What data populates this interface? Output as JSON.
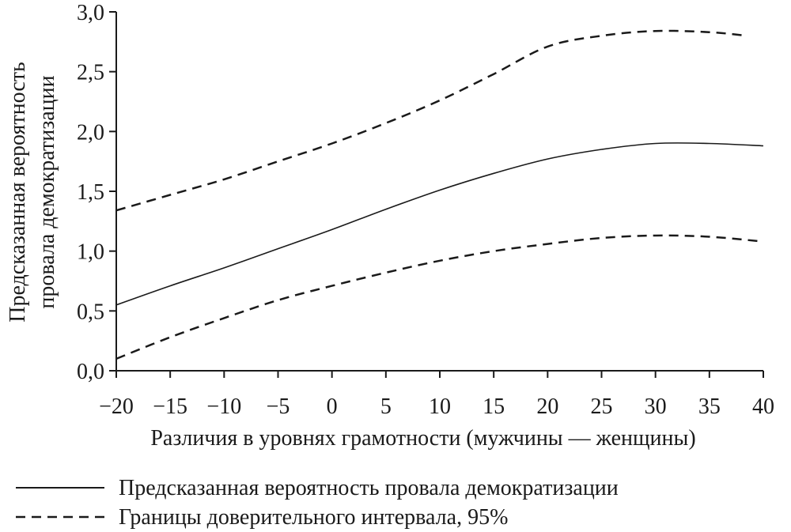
{
  "chart_data": {
    "type": "line",
    "xlabel": "Различия в уровнях грамотности (мужчины — женщины)",
    "ylabel_lines": [
      "Предсказанная вероятность",
      "провала демократизации"
    ],
    "xlim": [
      -20,
      40
    ],
    "ylim": [
      0,
      3
    ],
    "x_ticks": [
      -20,
      -15,
      -10,
      -5,
      0,
      5,
      10,
      15,
      20,
      25,
      30,
      35,
      40
    ],
    "x_tick_labels": [
      "−20",
      "−15",
      "−10",
      "−5",
      "0",
      "5",
      "10",
      "15",
      "20",
      "25",
      "30",
      "35",
      "40"
    ],
    "y_ticks": [
      0,
      0.5,
      1,
      1.5,
      2,
      2.5,
      3
    ],
    "y_tick_labels": [
      "0,0",
      "0,5",
      "1,0",
      "1,5",
      "2,0",
      "2,5",
      "3,0"
    ],
    "grid": false,
    "legend_position": "bottom",
    "series": [
      {
        "name": "Предсказанная вероятность провала демократизации",
        "style": "solid",
        "x": [
          -20,
          -15,
          -10,
          -5,
          0,
          5,
          10,
          15,
          20,
          25,
          30,
          35,
          40
        ],
        "y": [
          0.55,
          0.71,
          0.86,
          1.02,
          1.18,
          1.35,
          1.51,
          1.65,
          1.77,
          1.85,
          1.9,
          1.9,
          1.88
        ]
      },
      {
        "name": "Границы доверительного интервала, 95%",
        "style": "dashed",
        "x": [
          -20,
          -15,
          -10,
          -5,
          0,
          5,
          10,
          15,
          20,
          25,
          30,
          35,
          38.5
        ],
        "y": [
          1.34,
          1.47,
          1.6,
          1.75,
          1.9,
          2.07,
          2.26,
          2.48,
          2.71,
          2.8,
          2.84,
          2.83,
          2.8
        ]
      },
      {
        "name": "",
        "style": "dashed",
        "x": [
          -20,
          -15,
          -10,
          -5,
          0,
          5,
          10,
          15,
          20,
          25,
          30,
          35,
          40
        ],
        "y": [
          0.1,
          0.28,
          0.44,
          0.59,
          0.71,
          0.82,
          0.92,
          1.0,
          1.06,
          1.11,
          1.13,
          1.12,
          1.08
        ]
      }
    ],
    "legend": [
      {
        "label": "Предсказанная вероятность провала демократизации",
        "style": "solid"
      },
      {
        "label": "Границы доверительного интервала, 95%",
        "style": "dashed"
      }
    ]
  }
}
